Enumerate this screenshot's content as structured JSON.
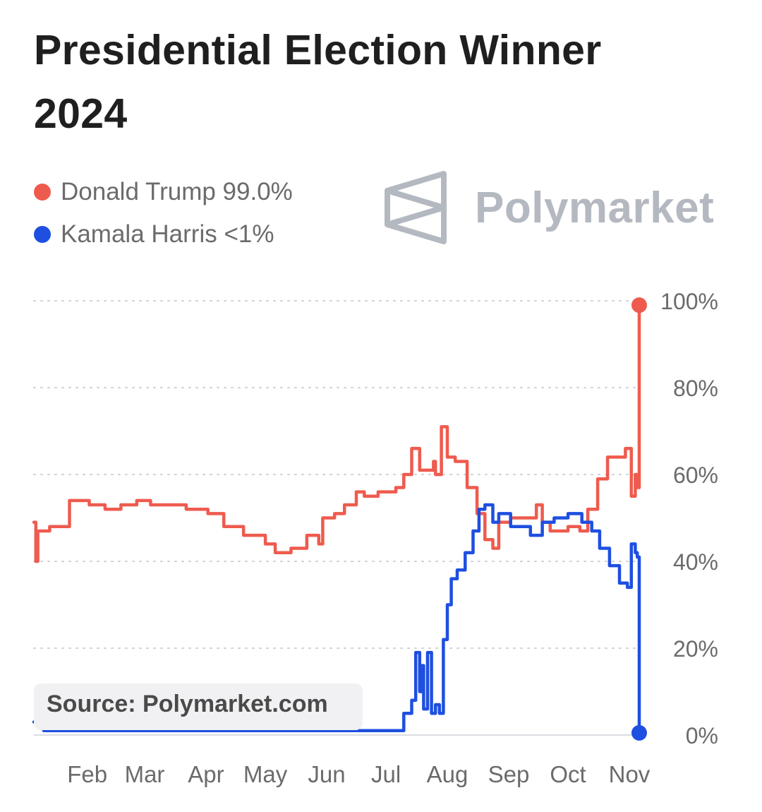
{
  "title": "Presidential Election Winner 2024",
  "brand": {
    "name": "Polymarket",
    "logo_icon": "polymarket-logo-icon"
  },
  "legend": [
    {
      "label": "Donald Trump 99.0%",
      "color": "#ee5b4e"
    },
    {
      "label": "Kamala Harris <1%",
      "color": "#1e4fe0"
    }
  ],
  "source": "Source: Polymarket.com",
  "chart_data": {
    "type": "line",
    "x_ticks": [
      "Feb",
      "Mar",
      "Apr",
      "May",
      "Jun",
      "Jul",
      "Aug",
      "Sep",
      "Oct",
      "Nov"
    ],
    "y_ticks": [
      "0%",
      "20%",
      "40%",
      "60%",
      "80%",
      "100%"
    ],
    "ylim": [
      0,
      100
    ],
    "xlim": [
      "2024-01-05",
      "2024-11-06"
    ],
    "grid": "horizontal-dotted",
    "y_axis_side": "right",
    "series": [
      {
        "name": "Donald Trump",
        "color": "#ee5b4e",
        "end_marker": true,
        "points": [
          [
            "2024-01-05",
            49
          ],
          [
            "2024-01-06",
            40
          ],
          [
            "2024-01-07",
            47
          ],
          [
            "2024-01-10",
            47
          ],
          [
            "2024-01-13",
            48
          ],
          [
            "2024-01-20",
            48
          ],
          [
            "2024-01-23",
            54
          ],
          [
            "2024-01-30",
            54
          ],
          [
            "2024-02-02",
            53
          ],
          [
            "2024-02-10",
            52
          ],
          [
            "2024-02-18",
            53
          ],
          [
            "2024-02-26",
            54
          ],
          [
            "2024-03-04",
            53
          ],
          [
            "2024-03-14",
            53
          ],
          [
            "2024-03-22",
            52
          ],
          [
            "2024-04-02",
            51
          ],
          [
            "2024-04-10",
            48
          ],
          [
            "2024-04-20",
            46
          ],
          [
            "2024-05-01",
            44
          ],
          [
            "2024-05-06",
            42
          ],
          [
            "2024-05-14",
            43
          ],
          [
            "2024-05-22",
            46
          ],
          [
            "2024-05-28",
            44
          ],
          [
            "2024-05-30",
            50
          ],
          [
            "2024-06-05",
            51
          ],
          [
            "2024-06-10",
            53
          ],
          [
            "2024-06-16",
            56
          ],
          [
            "2024-06-20",
            55
          ],
          [
            "2024-06-27",
            56
          ],
          [
            "2024-07-06",
            57
          ],
          [
            "2024-07-10",
            60
          ],
          [
            "2024-07-14",
            66
          ],
          [
            "2024-07-18",
            61
          ],
          [
            "2024-07-25",
            63
          ],
          [
            "2024-07-26",
            60
          ],
          [
            "2024-07-29",
            71
          ],
          [
            "2024-08-01",
            64
          ],
          [
            "2024-08-05",
            63
          ],
          [
            "2024-08-11",
            57
          ],
          [
            "2024-08-16",
            51
          ],
          [
            "2024-08-20",
            45
          ],
          [
            "2024-08-24",
            43
          ],
          [
            "2024-08-27",
            49
          ],
          [
            "2024-09-02",
            50
          ],
          [
            "2024-09-08",
            50
          ],
          [
            "2024-09-15",
            53
          ],
          [
            "2024-09-18",
            49
          ],
          [
            "2024-09-22",
            47
          ],
          [
            "2024-10-01",
            48
          ],
          [
            "2024-10-07",
            47
          ],
          [
            "2024-10-11",
            52
          ],
          [
            "2024-10-16",
            59
          ],
          [
            "2024-10-21",
            64
          ],
          [
            "2024-10-25",
            64
          ],
          [
            "2024-10-30",
            66
          ],
          [
            "2024-11-02",
            55
          ],
          [
            "2024-11-04",
            60
          ],
          [
            "2024-11-05",
            57
          ],
          [
            "2024-11-06",
            99
          ]
        ]
      },
      {
        "name": "Kamala Harris",
        "color": "#1e4fe0",
        "end_marker": true,
        "points": [
          [
            "2024-01-05",
            3
          ],
          [
            "2024-01-10",
            1
          ],
          [
            "2024-02-01",
            1
          ],
          [
            "2024-03-01",
            1
          ],
          [
            "2024-04-01",
            1
          ],
          [
            "2024-05-01",
            1
          ],
          [
            "2024-06-01",
            1
          ],
          [
            "2024-07-01",
            1
          ],
          [
            "2024-07-07",
            1
          ],
          [
            "2024-07-10",
            5
          ],
          [
            "2024-07-14",
            8
          ],
          [
            "2024-07-16",
            19
          ],
          [
            "2024-07-18",
            10
          ],
          [
            "2024-07-19",
            16
          ],
          [
            "2024-07-20",
            6
          ],
          [
            "2024-07-22",
            19
          ],
          [
            "2024-07-24",
            5
          ],
          [
            "2024-07-26",
            7
          ],
          [
            "2024-07-28",
            5
          ],
          [
            "2024-07-30",
            22
          ],
          [
            "2024-08-01",
            30
          ],
          [
            "2024-08-03",
            36
          ],
          [
            "2024-08-06",
            38
          ],
          [
            "2024-08-10",
            42
          ],
          [
            "2024-08-14",
            47
          ],
          [
            "2024-08-17",
            52
          ],
          [
            "2024-08-20",
            53
          ],
          [
            "2024-08-24",
            49
          ],
          [
            "2024-08-27",
            51
          ],
          [
            "2024-09-02",
            48
          ],
          [
            "2024-09-08",
            48
          ],
          [
            "2024-09-12",
            46
          ],
          [
            "2024-09-18",
            49
          ],
          [
            "2024-09-24",
            50
          ],
          [
            "2024-10-01",
            51
          ],
          [
            "2024-10-08",
            49
          ],
          [
            "2024-10-13",
            47
          ],
          [
            "2024-10-17",
            43
          ],
          [
            "2024-10-22",
            39
          ],
          [
            "2024-10-27",
            35
          ],
          [
            "2024-10-31",
            34
          ],
          [
            "2024-11-02",
            44
          ],
          [
            "2024-11-04",
            42
          ],
          [
            "2024-11-05",
            41
          ],
          [
            "2024-11-06",
            0.5
          ]
        ]
      }
    ]
  }
}
